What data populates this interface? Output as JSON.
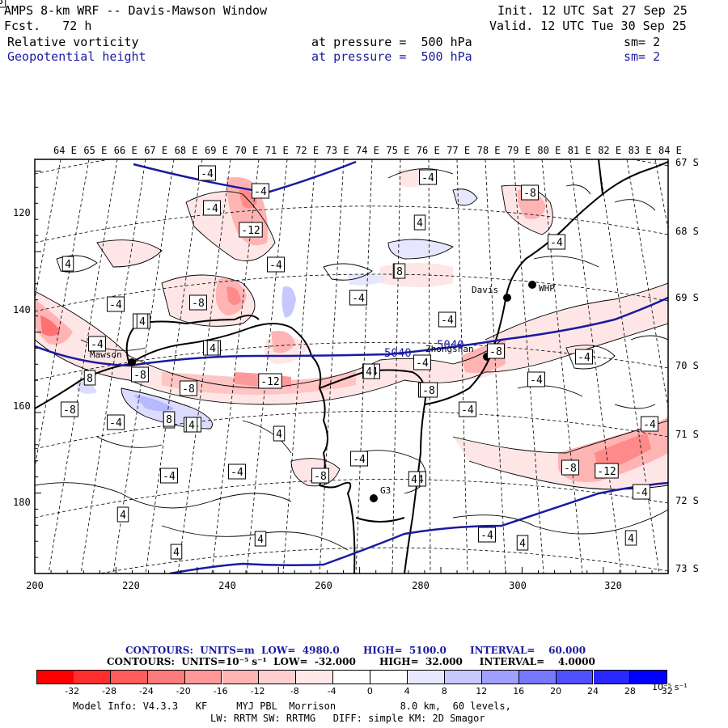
{
  "header": {
    "title": "AMPS 8-km WRF -- Davis-Mawson Window",
    "init": "Init. 12 UTC Sat 27 Sep 25",
    "fcst": "Fcst.   72 h",
    "valid": "Valid. 12 UTC Tue 30 Sep 25",
    "field1": "Relative vorticity",
    "field1_level": "at pressure =  500 hPa",
    "field1_sm": "sm= 2",
    "field2": "Geopotential height",
    "field2_level": "at pressure =  500 hPa",
    "field2_sm": "sm= 2"
  },
  "axes": {
    "top_lon": [
      "64 E",
      "65 E",
      "66 E",
      "67 E",
      "68 E",
      "69 E",
      "70 E",
      "71 E",
      "72 E",
      "73 E",
      "74 E",
      "75 E",
      "76 E",
      "77 E",
      "78 E",
      "79 E",
      "80 E",
      "81 E",
      "82 E",
      "83 E",
      "84 E"
    ],
    "right_lat": [
      "67 S",
      "68 S",
      "69 S",
      "70 S",
      "71 S",
      "72 S",
      "73 S"
    ],
    "left_y": [
      "120",
      "140",
      "160",
      "180"
    ],
    "bottom_x": [
      "200",
      "220",
      "240",
      "260",
      "280",
      "300",
      "320"
    ]
  },
  "stations": [
    {
      "name": "Mawson"
    },
    {
      "name": "Davis"
    },
    {
      "name": "WHP"
    },
    {
      "name": "Zhongshan"
    },
    {
      "name": "G3"
    }
  ],
  "height_labels": [
    "5040",
    "5040"
  ],
  "vort_labels": [
    "-4",
    "-4",
    "-4",
    "-4",
    "-4",
    "-4",
    "-4",
    "-4",
    "-4",
    "-4",
    "-4",
    "-4",
    "-4",
    "-4",
    "-4",
    "-4",
    "-4",
    "-4",
    "-4",
    "-4",
    "-4",
    "-4",
    "-4",
    "-4",
    "-4",
    "-4",
    "-4",
    "-8",
    "-8",
    "-8",
    "-8",
    "-8",
    "-8",
    "-8",
    "-8",
    "-8",
    "-12",
    "-12",
    "-12",
    "4",
    "4",
    "4",
    "4",
    "4",
    "4",
    "4",
    "4",
    "4",
    "4",
    "4",
    "4",
    "4",
    "4",
    "4",
    "8",
    "8",
    "8",
    "8"
  ],
  "footer": {
    "line1": "CONTOURS:  UNITS=m  LOW=  4980.0       HIGH=  5100.0       INTERVAL=    60.000",
    "line2": "CONTOURS:  UNITS=10⁻⁵ s⁻¹  LOW=  -32.000       HIGH=  32.000     INTERVAL=    4.0000",
    "colorbar_ticks": [
      "-32",
      "-28",
      "-24",
      "-20",
      "-16",
      "-12",
      "-8",
      "-4",
      "0",
      "4",
      "8",
      "12",
      "16",
      "20",
      "24",
      "28",
      "32"
    ],
    "colorbar_unit": "10⁻⁵ s⁻¹",
    "colorbar_colors": [
      "#ff0000",
      "#ff2e2e",
      "#ff5c5c",
      "#ff7a7a",
      "#ff9898",
      "#ffb4b4",
      "#ffcfcf",
      "#ffe8e8",
      "#ffffff",
      "#ffffff",
      "#e8e8ff",
      "#c8c8ff",
      "#a0a0ff",
      "#7878ff",
      "#5050ff",
      "#2828ff",
      "#0000ff"
    ],
    "model_info1": "Model Info: V4.3.3   KF     MYJ PBL  Morrison           8.0 km,  60 levels,",
    "model_info2": "LW: RRTM SW: RRTMG   DIFF: simple KM: 2D Smagor"
  }
}
